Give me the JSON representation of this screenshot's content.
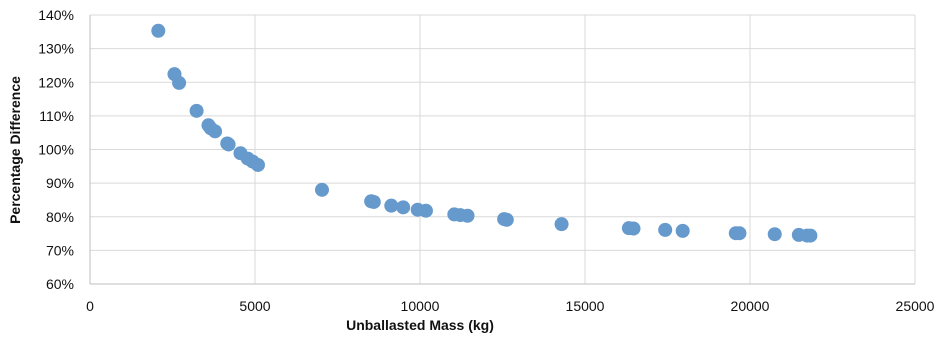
{
  "chart_data": {
    "type": "scatter",
    "title": "",
    "xlabel": "Unballasted Mass (kg)",
    "ylabel": "Percentage Difference",
    "xlim": [
      0,
      25000
    ],
    "ylim": [
      60,
      140
    ],
    "xticks": [
      0,
      5000,
      10000,
      15000,
      20000,
      25000
    ],
    "xtick_labels": [
      "0",
      "5000",
      "10000",
      "15000",
      "20000",
      "25000"
    ],
    "yticks": [
      60,
      70,
      80,
      90,
      100,
      110,
      120,
      130,
      140
    ],
    "ytick_labels": [
      "60%",
      "70%",
      "80%",
      "90%",
      "100%",
      "110%",
      "120%",
      "130%",
      "140%"
    ],
    "grid": true,
    "legend": "none",
    "marker_color": "#6699CC",
    "grid_color": "#D9D9D9",
    "series": [
      {
        "x": [
          2070,
          2560,
          2700,
          3230,
          3590,
          3660,
          3790,
          4160,
          4200,
          4560,
          4780,
          4930,
          5090,
          7030,
          8520,
          8600,
          9130,
          9490,
          9930,
          10180,
          11040,
          11220,
          11440,
          12550,
          12630,
          14290,
          16330,
          16470,
          17430,
          17960,
          19570,
          19680,
          20750,
          21480,
          21730,
          21830
        ],
        "y": [
          135.3,
          122.4,
          119.8,
          111.5,
          107.2,
          106.3,
          105.4,
          101.8,
          101.5,
          98.9,
          97.3,
          96.4,
          95.4,
          88.0,
          84.6,
          84.4,
          83.3,
          82.8,
          82.1,
          81.8,
          80.7,
          80.5,
          80.3,
          79.3,
          79.1,
          77.8,
          76.6,
          76.5,
          76.1,
          75.8,
          75.1,
          75.1,
          74.8,
          74.6,
          74.4,
          74.4
        ]
      }
    ]
  }
}
